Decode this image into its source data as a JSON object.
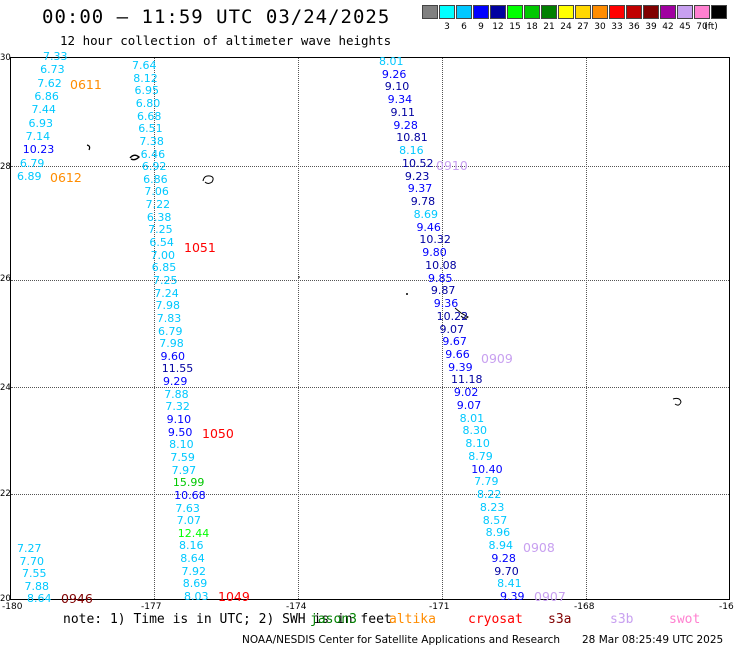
{
  "header": {
    "title": "00:00 – 11:59 UTC 03/24/2025",
    "subtitle": "12 hour collection of altimeter wave heights"
  },
  "colorbar": {
    "unit": "(ft)",
    "bins": [
      {
        "color": "#808080",
        "label": ""
      },
      {
        "color": "#00ffff",
        "label": "3"
      },
      {
        "color": "#00c8ff",
        "label": "6"
      },
      {
        "color": "#0000ff",
        "label": "9"
      },
      {
        "color": "#0000a0",
        "label": "12"
      },
      {
        "color": "#00ff00",
        "label": "15"
      },
      {
        "color": "#00c800",
        "label": "18"
      },
      {
        "color": "#008000",
        "label": "21"
      },
      {
        "color": "#ffff00",
        "label": "24"
      },
      {
        "color": "#ffd700",
        "label": "27"
      },
      {
        "color": "#ff8c00",
        "label": "30"
      },
      {
        "color": "#ff0000",
        "label": "33"
      },
      {
        "color": "#c00000",
        "label": "36"
      },
      {
        "color": "#800000",
        "label": "39"
      },
      {
        "color": "#a000a0",
        "label": "42"
      },
      {
        "color": "#c8a0f0",
        "label": "45"
      },
      {
        "color": "#ff80d0",
        "label": "70"
      },
      {
        "color": "#000000",
        "label": ""
      }
    ]
  },
  "axes": {
    "y_ticks": [
      "30",
      "28",
      "26",
      "24",
      "22",
      "20"
    ],
    "x_ticks": [
      "-180",
      "-177",
      "-174",
      "-171",
      "-168",
      "-16"
    ]
  },
  "passes": [
    {
      "label": "0611",
      "color": "#ff8c00"
    },
    {
      "label": "0612",
      "color": "#ff8c00"
    },
    {
      "label": "1051",
      "color": "#ff0000"
    },
    {
      "label": "1050",
      "color": "#ff0000"
    },
    {
      "label": "1049",
      "color": "#ff0000"
    },
    {
      "label": "0946",
      "color": "#800000"
    },
    {
      "label": "0910",
      "color": "#c8a0f0"
    },
    {
      "label": "0909",
      "color": "#c8a0f0"
    },
    {
      "label": "0908",
      "color": "#c8a0f0"
    },
    {
      "label": "0907",
      "color": "#c8a0f0"
    }
  ],
  "tracks": {
    "track_a": [
      "7.33",
      "6.73",
      "7.62",
      "6.86",
      "7.44",
      "6.93",
      "7.14",
      "10.23",
      "6.79",
      "6.89"
    ],
    "track_a_colors": [
      "#00c8ff",
      "#00c8ff",
      "#00c8ff",
      "#00c8ff",
      "#00c8ff",
      "#00c8ff",
      "#00c8ff",
      "#0000ff",
      "#00c8ff",
      "#00c8ff"
    ],
    "track_b": [
      "7.64",
      "8.12",
      "6.95",
      "6.80",
      "6.68",
      "6.51",
      "7.38",
      "6.46",
      "6.92",
      "6.86",
      "7.06",
      "7.22",
      "6.38",
      "7.25",
      "6.54",
      "7.00",
      "6.85",
      "7.25",
      "7.24",
      "7.98",
      "7.83",
      "6.79",
      "7.98",
      "9.60",
      "11.55",
      "9.29",
      "7.88",
      "7.32",
      "9.10",
      "9.50",
      "8.10",
      "7.59",
      "7.97",
      "15.99",
      "10.68",
      "7.63",
      "7.07",
      "12.44",
      "8.16",
      "8.64",
      "7.92",
      "8.69",
      "8.03"
    ],
    "track_b_colors": [
      "#00c8ff",
      "#00c8ff",
      "#00c8ff",
      "#00c8ff",
      "#00c8ff",
      "#00c8ff",
      "#00c8ff",
      "#00c8ff",
      "#00c8ff",
      "#00c8ff",
      "#00c8ff",
      "#00c8ff",
      "#00c8ff",
      "#00c8ff",
      "#00c8ff",
      "#00c8ff",
      "#00c8ff",
      "#00c8ff",
      "#00c8ff",
      "#00c8ff",
      "#00c8ff",
      "#00c8ff",
      "#00c8ff",
      "#0000ff",
      "#0000a0",
      "#0000ff",
      "#00c8ff",
      "#00c8ff",
      "#0000ff",
      "#0000ff",
      "#00c8ff",
      "#00c8ff",
      "#00c8ff",
      "#00c800",
      "#0000ff",
      "#00c8ff",
      "#00c8ff",
      "#00ff00",
      "#00c8ff",
      "#00c8ff",
      "#00c8ff",
      "#00c8ff",
      "#00c8ff"
    ],
    "track_c": [
      "7.27",
      "7.70",
      "7.55",
      "7.88",
      "8.64"
    ],
    "track_c_colors": [
      "#00c8ff",
      "#00c8ff",
      "#00c8ff",
      "#00c8ff",
      "#00c8ff"
    ],
    "track_d": [
      "8.01",
      "9.26",
      "9.10",
      "9.34",
      "9.11",
      "9.28",
      "10.81",
      "8.16",
      "10.52",
      "9.23",
      "9.37",
      "9.78",
      "8.69",
      "9.46",
      "10.32",
      "9.80",
      "10.08",
      "9.85",
      "9.87",
      "9.36",
      "10.22",
      "9.07",
      "9.67",
      "9.66",
      "9.39",
      "11.18",
      "9.02",
      "9.07",
      "8.01",
      "8.30",
      "8.10",
      "8.79",
      "10.40",
      "7.79",
      "8.22",
      "8.23",
      "8.57",
      "8.96",
      "8.94",
      "9.28",
      "9.70",
      "8.41",
      "9.39"
    ],
    "track_d_colors": [
      "#00c8ff",
      "#0000ff",
      "#0000a0",
      "#0000ff",
      "#0000a0",
      "#0000ff",
      "#0000a0",
      "#00c8ff",
      "#0000a0",
      "#0000a0",
      "#0000ff",
      "#0000a0",
      "#00c8ff",
      "#0000ff",
      "#0000a0",
      "#0000ff",
      "#0000a0",
      "#0000ff",
      "#0000a0",
      "#0000ff",
      "#0000a0",
      "#0000a0",
      "#0000ff",
      "#0000ff",
      "#0000ff",
      "#0000a0",
      "#0000ff",
      "#0000ff",
      "#00c8ff",
      "#00c8ff",
      "#00c8ff",
      "#00c8ff",
      "#0000ff",
      "#00c8ff",
      "#00c8ff",
      "#00c8ff",
      "#00c8ff",
      "#00c8ff",
      "#00c8ff",
      "#0000ff",
      "#0000a0",
      "#00c8ff",
      "#0000ff"
    ]
  },
  "footer": {
    "note": "note: 1) Time is in UTC; 2) SWH is in feet",
    "satellites": [
      {
        "name": "jason3",
        "color": "#008000"
      },
      {
        "name": "altika",
        "color": "#ff8c00"
      },
      {
        "name": "cryosat",
        "color": "#ff0000"
      },
      {
        "name": "s3a",
        "color": "#800000"
      },
      {
        "name": "s3b",
        "color": "#c8a0f0"
      },
      {
        "name": "swot",
        "color": "#ff80d0"
      }
    ],
    "credit": "NOAA/NESDIS Center for Satellite Applications and Research",
    "timestamp": "28 Mar 08:25:49 UTC 2025"
  }
}
